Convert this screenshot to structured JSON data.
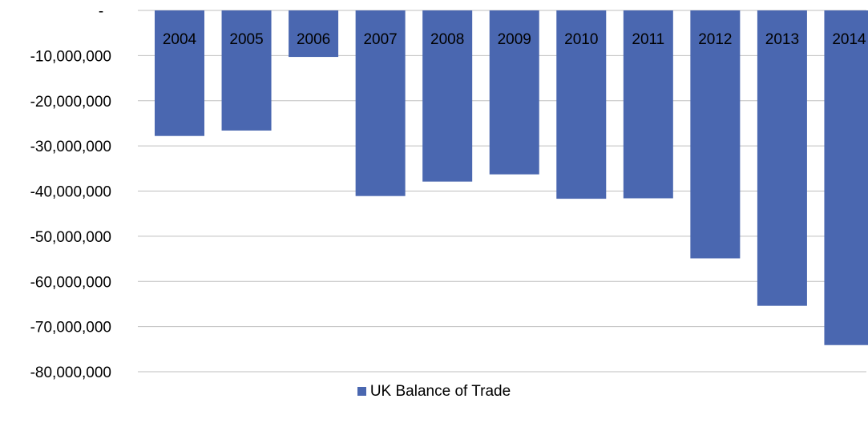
{
  "chart_data": {
    "type": "bar",
    "categories": [
      "2004",
      "2005",
      "2006",
      "2007",
      "2008",
      "2009",
      "2010",
      "2011",
      "2012",
      "2013",
      "2014"
    ],
    "series": [
      {
        "name": "UK Balance of Trade",
        "values": [
          -27800000,
          -26600000,
          -10300000,
          -41100000,
          -37900000,
          -36300000,
          -41700000,
          -41600000,
          -54900000,
          -65400000,
          -74100000
        ]
      }
    ],
    "ylim": [
      -80000000,
      0
    ],
    "yticks": [
      0,
      -10000000,
      -20000000,
      -30000000,
      -40000000,
      -50000000,
      -60000000,
      -70000000,
      -80000000
    ],
    "ytick_labels": [
      "-",
      "-10,000,000",
      "-20,000,000",
      "-30,000,000",
      "-40,000,000",
      "-50,000,000",
      "-60,000,000",
      "-70,000,000",
      "-80,000,000"
    ],
    "grid": true,
    "legend_position": "bottom",
    "colors": {
      "bar": "#4A67B0",
      "gridline": "#BFBFBF"
    }
  }
}
